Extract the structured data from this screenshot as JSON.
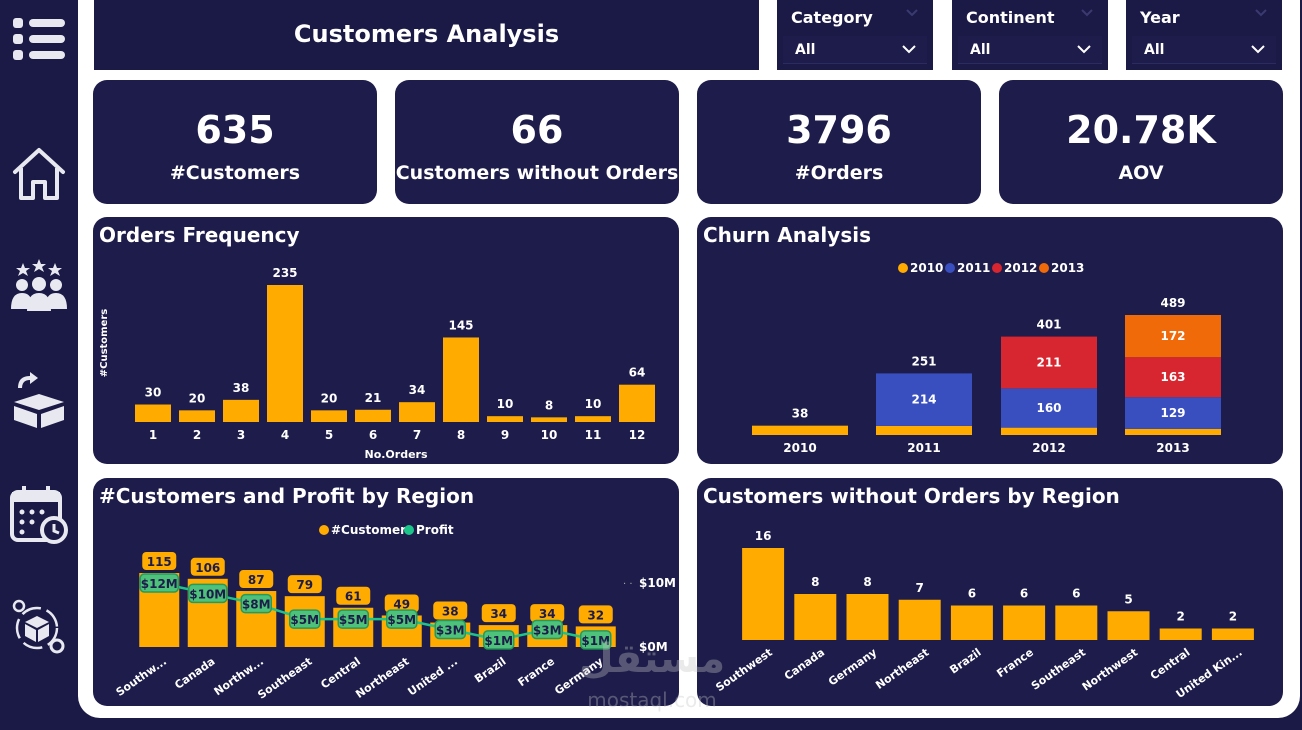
{
  "header": {
    "title": "Customers Analysis"
  },
  "slicers": [
    {
      "label": "Category",
      "value": "All"
    },
    {
      "label": "Continent",
      "value": "All"
    },
    {
      "label": "Year",
      "value": "All"
    }
  ],
  "sidebar": {
    "items": [
      {
        "icon": "menu-icon"
      },
      {
        "icon": "home-icon"
      },
      {
        "icon": "customers-icon"
      },
      {
        "icon": "returns-box-icon"
      },
      {
        "icon": "calendar-clock-icon"
      },
      {
        "icon": "product-settings-icon"
      }
    ]
  },
  "kpis": [
    {
      "value": "635",
      "label": "#Customers"
    },
    {
      "value": "66",
      "label": "Customers without Orders"
    },
    {
      "value": "3796",
      "label": "#Orders"
    },
    {
      "value": "20.78K",
      "label": "AOV"
    }
  ],
  "colors": {
    "bar": "#ffab00",
    "y2010": "#ffab00",
    "y2011": "#3a4fbf",
    "y2012": "#d7262f",
    "y2013": "#f06a0a",
    "profit": "#1cc48a",
    "panel": "#1d1c4a",
    "page": "#1b1a46"
  },
  "chart_data": [
    {
      "id": "orders_frequency",
      "type": "bar",
      "title": "Orders Frequency",
      "xlabel": "No.Orders",
      "ylabel": "#Customers",
      "categories": [
        "1",
        "2",
        "3",
        "4",
        "5",
        "6",
        "7",
        "8",
        "9",
        "10",
        "11",
        "12"
      ],
      "values": [
        30,
        20,
        38,
        235,
        20,
        21,
        34,
        145,
        10,
        8,
        10,
        64
      ],
      "ylim": [
        0,
        235
      ]
    },
    {
      "id": "churn_analysis",
      "type": "bar",
      "stacked": true,
      "title": "Churn Analysis",
      "categories": [
        "2010",
        "2011",
        "2012",
        "2013"
      ],
      "series": [
        {
          "name": "2010",
          "values": [
            38,
            37,
            30,
            25
          ]
        },
        {
          "name": "2011",
          "values": [
            null,
            214,
            160,
            129
          ]
        },
        {
          "name": "2012",
          "values": [
            null,
            null,
            211,
            163
          ]
        },
        {
          "name": "2013",
          "values": [
            null,
            null,
            null,
            172
          ]
        }
      ],
      "totals": [
        38,
        251,
        401,
        489
      ],
      "legend": "top-center"
    },
    {
      "id": "customers_profit_region",
      "type": "bar",
      "title": "#Customers and Profit by Region",
      "categories": [
        "Southw...",
        "Canada",
        "Northw...",
        "Southeast",
        "Central",
        "Northeast",
        "United ...",
        "Brazil",
        "France",
        "Germany"
      ],
      "series": [
        {
          "name": "#Customers",
          "type": "bar",
          "values": [
            115,
            106,
            87,
            79,
            61,
            49,
            38,
            34,
            34,
            32
          ]
        },
        {
          "name": "Profit",
          "type": "line",
          "values": [
            12,
            10,
            8,
            5,
            5,
            5,
            3,
            1,
            3,
            1
          ],
          "labels": [
            "$12M",
            "$10M",
            "$8M",
            "$5M",
            "$5M",
            "$5M",
            "$3M",
            "$1M",
            "$3M",
            "$1M"
          ]
        }
      ],
      "y2_ticks": [
        "$10M",
        "$0M"
      ],
      "legend": "top-center"
    },
    {
      "id": "customers_without_orders_region",
      "type": "bar",
      "title": "Customers without Orders by Region",
      "categories": [
        "Southwest",
        "Canada",
        "Germany",
        "Northeast",
        "Brazil",
        "France",
        "Southeast",
        "Northwest",
        "Central",
        "United Kin..."
      ],
      "values": [
        16,
        8,
        8,
        7,
        6,
        6,
        6,
        5,
        2,
        2
      ]
    }
  ],
  "watermark": {
    "arabic": "مستقل",
    "latin": "mostaql.com"
  }
}
